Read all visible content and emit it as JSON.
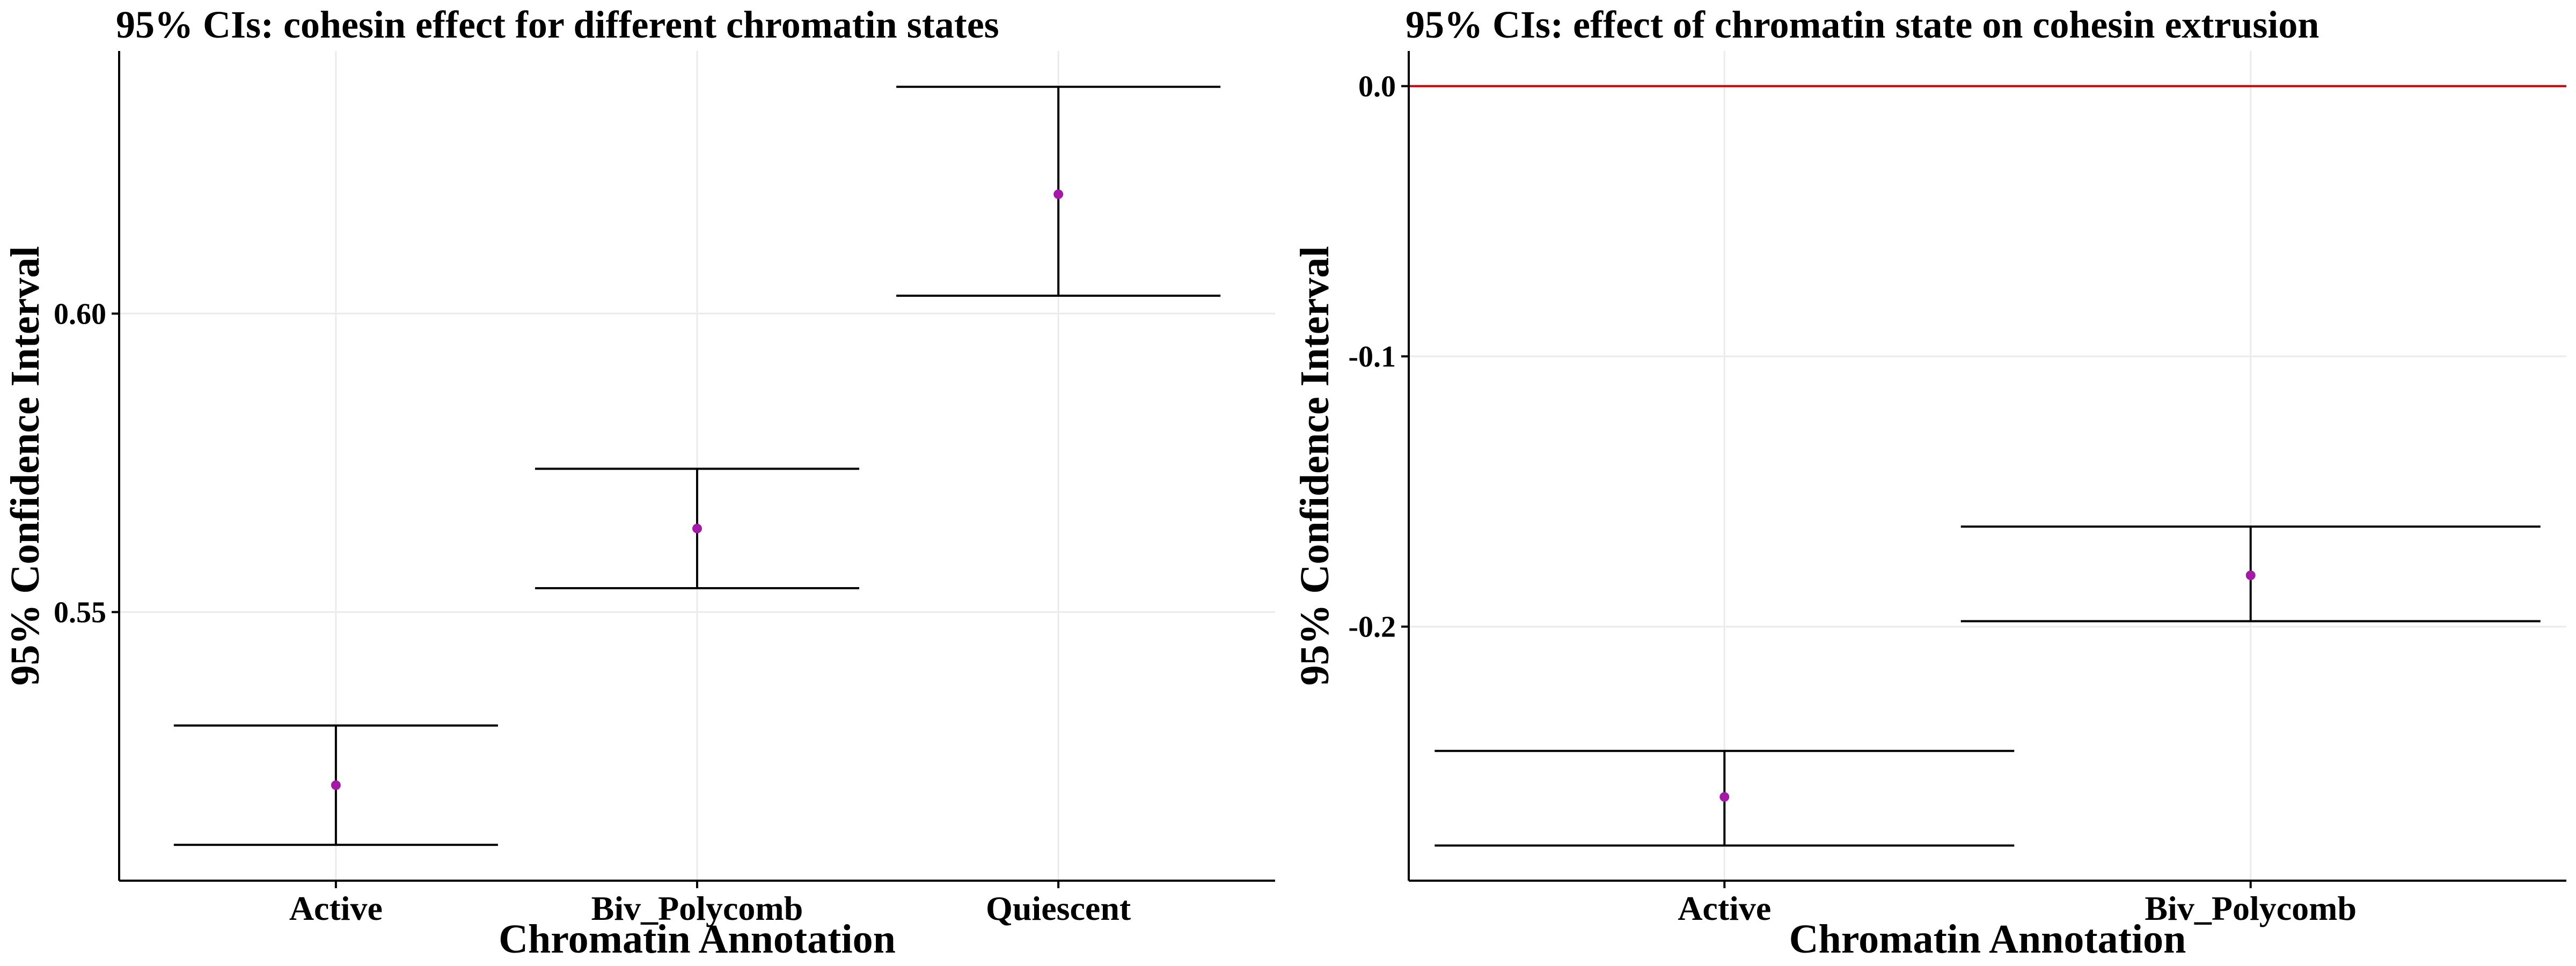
{
  "chart_data": [
    {
      "type": "errorbar",
      "title": "95% CIs: cohesin effect for different chromatin states",
      "xlabel": "Chromatin Annotation",
      "ylabel": "95% Confidence Interval",
      "categories": [
        "Active",
        "Biv_Polycomb",
        "Quiescent"
      ],
      "estimates": [
        0.521,
        0.564,
        0.62
      ],
      "lower": [
        0.511,
        0.554,
        0.603
      ],
      "upper": [
        0.531,
        0.574,
        0.638
      ],
      "ylim": [
        0.505,
        0.644
      ],
      "yticks": [
        0.55,
        0.6
      ],
      "ytick_labels": [
        "0.55",
        "0.60"
      ],
      "reference_line": null,
      "grid": true,
      "point_color": "#a41aa6",
      "bar_color": "#000000"
    },
    {
      "type": "errorbar",
      "title": "95% CIs: effect of chromatin state on cohesin extrusion",
      "xlabel": "Chromatin Annotation",
      "ylabel": "95% Confidence Interval",
      "categories": [
        "Active",
        "Biv_Polycomb"
      ],
      "estimates": [
        -0.263,
        -0.181
      ],
      "lower": [
        -0.281,
        -0.198
      ],
      "upper": [
        -0.246,
        -0.163
      ],
      "ylim": [
        -0.294,
        0.013
      ],
      "yticks": [
        0.0,
        -0.1,
        -0.2
      ],
      "ytick_labels": [
        "0.0",
        "-0.1",
        "-0.2"
      ],
      "reference_line": 0.0,
      "reference_color": "#cc0000",
      "grid": true,
      "point_color": "#a41aa6",
      "bar_color": "#000000"
    }
  ]
}
